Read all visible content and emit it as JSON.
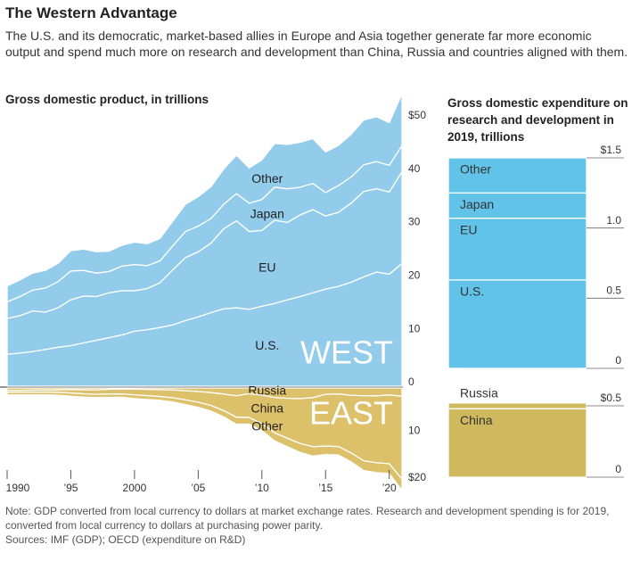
{
  "title": "The Western Advantage",
  "subtitle": "The U.S. and its democratic, market-based allies in Europe and Asia together generate far more economic output and spend much more on research and development than China, Russia and countries aligned with them.",
  "note": "Note: GDP converted from local currency to dollars at market exchange rates. Research and development spending is for 2019, converted from local currency to dollars at purchasing power parity.",
  "sources": "Sources: IMF (GDP); OECD (expenditure on R&D)",
  "chart_data": [
    {
      "type": "area",
      "stacked": true,
      "title": "Gross domestic product, in trillions",
      "annotation": "WEST",
      "x": [
        1990,
        1991,
        1992,
        1993,
        1994,
        1995,
        1996,
        1997,
        1998,
        1999,
        2000,
        2001,
        2002,
        2003,
        2004,
        2005,
        2006,
        2007,
        2008,
        2009,
        2010,
        2011,
        2012,
        2013,
        2014,
        2015,
        2016,
        2017,
        2018,
        2019,
        2020,
        2021
      ],
      "xlim": [
        1990,
        2021
      ],
      "ylim": [
        0,
        56
      ],
      "yticks": [
        0,
        10,
        20,
        30,
        40,
        {
          "value": 50,
          "label": "$50"
        }
      ],
      "series": [
        {
          "name": "U.S.",
          "color": "#93cbeb",
          "values": [
            6.0,
            6.2,
            6.5,
            6.9,
            7.3,
            7.6,
            8.1,
            8.6,
            9.1,
            9.6,
            10.3,
            10.6,
            11.0,
            11.5,
            12.3,
            13.0,
            13.8,
            14.5,
            14.7,
            14.4,
            15.0,
            15.5,
            16.2,
            16.8,
            17.5,
            18.2,
            18.7,
            19.5,
            20.5,
            21.4,
            21.0,
            23.0
          ]
        },
        {
          "name": "EU",
          "color": "#93cbeb",
          "values": [
            6.7,
            7.0,
            7.6,
            7.0,
            7.4,
            8.6,
            8.8,
            8.2,
            8.4,
            8.3,
            7.6,
            7.7,
            8.4,
            10.3,
            11.8,
            12.2,
            13.0,
            15.0,
            16.3,
            14.6,
            14.2,
            15.6,
            14.5,
            15.3,
            15.6,
            13.7,
            13.9,
            14.8,
            16.0,
            15.6,
            15.4,
            17.2
          ]
        },
        {
          "name": "Japan",
          "color": "#93cbeb",
          "values": [
            3.1,
            3.6,
            3.9,
            4.5,
            4.9,
            5.4,
            4.8,
            4.4,
            4.0,
            4.6,
            4.9,
            4.3,
            4.1,
            4.5,
            4.9,
            4.8,
            4.6,
            4.6,
            5.1,
            5.3,
            5.8,
            6.2,
            6.3,
            5.2,
            4.9,
            4.4,
            5.0,
            4.9,
            5.0,
            5.1,
            5.0,
            4.9
          ]
        },
        {
          "name": "Other",
          "color": "#93cbeb",
          "values": [
            3.0,
            3.1,
            3.2,
            3.3,
            3.4,
            3.8,
            4.0,
            4.0,
            3.8,
            3.9,
            4.2,
            4.1,
            4.2,
            4.6,
            5.1,
            5.5,
            6.0,
            6.6,
            7.2,
            6.6,
            7.4,
            8.2,
            8.3,
            8.4,
            8.4,
            7.6,
            7.5,
            8.0,
            8.4,
            8.4,
            8.0,
            9.7
          ]
        }
      ]
    },
    {
      "type": "area",
      "stacked": true,
      "inverted": true,
      "annotation": "EAST",
      "x": [
        1990,
        1991,
        1992,
        1993,
        1994,
        1995,
        1996,
        1997,
        1998,
        1999,
        2000,
        2001,
        2002,
        2003,
        2004,
        2005,
        2006,
        2007,
        2008,
        2009,
        2010,
        2011,
        2012,
        2013,
        2014,
        2015,
        2016,
        2017,
        2018,
        2019,
        2020,
        2021
      ],
      "xlim": [
        1990,
        2021
      ],
      "ylim": [
        0,
        22
      ],
      "yticks": [
        10,
        {
          "value": 20,
          "label": "$20"
        }
      ],
      "xticks": [
        1990,
        {
          "value": 1995,
          "label": "’95"
        },
        2000,
        {
          "value": 2005,
          "label": "’05"
        },
        {
          "value": 2010,
          "label": "’10"
        },
        {
          "value": 2015,
          "label": "’15"
        },
        {
          "value": 2020,
          "label": "’20"
        }
      ],
      "series": [
        {
          "name": "Russia",
          "color": "#dcc06a",
          "values": [
            0.52,
            0.51,
            0.46,
            0.44,
            0.39,
            0.34,
            0.39,
            0.4,
            0.27,
            0.2,
            0.26,
            0.31,
            0.35,
            0.43,
            0.59,
            0.76,
            0.99,
            1.3,
            1.66,
            1.22,
            1.52,
            2.05,
            2.21,
            2.29,
            2.06,
            1.36,
            1.28,
            1.57,
            1.66,
            1.69,
            1.49,
            1.78
          ]
        },
        {
          "name": "China",
          "color": "#dcc06a",
          "values": [
            0.36,
            0.38,
            0.43,
            0.44,
            0.56,
            0.73,
            0.86,
            0.96,
            1.03,
            1.09,
            1.21,
            1.34,
            1.47,
            1.66,
            1.96,
            2.29,
            2.75,
            3.55,
            4.59,
            5.1,
            6.09,
            7.55,
            8.53,
            9.57,
            10.48,
            11.06,
            11.23,
            12.31,
            13.89,
            14.28,
            14.69,
            17.7
          ]
        },
        {
          "name": "Other",
          "color": "#dcc06a",
          "values": [
            0.6,
            0.6,
            0.6,
            0.6,
            0.6,
            0.7,
            0.7,
            0.7,
            0.7,
            0.7,
            0.8,
            0.8,
            0.8,
            0.9,
            1.0,
            1.1,
            1.2,
            1.3,
            1.5,
            1.4,
            1.5,
            1.7,
            1.8,
            1.9,
            2.0,
            1.8,
            1.8,
            1.9,
            2.1,
            2.1,
            2.1,
            2.4
          ]
        }
      ]
    },
    {
      "type": "bar",
      "stacked": true,
      "title": "Gross domestic expenditure on research and development in 2019, trillions",
      "categories": [
        null
      ],
      "ylim": [
        0,
        1.5
      ],
      "yticks": [
        0,
        0.5,
        {
          "value": 1,
          "label": "1.0"
        },
        {
          "value": 1.5,
          "label": "$1.5"
        }
      ],
      "series": [
        {
          "name": "U.S.",
          "color": "#62c3e9",
          "values": [
            0.63
          ]
        },
        {
          "name": "EU",
          "color": "#62c3e9",
          "values": [
            0.44
          ]
        },
        {
          "name": "Japan",
          "color": "#62c3e9",
          "values": [
            0.18
          ]
        },
        {
          "name": "Other",
          "color": "#62c3e9",
          "values": [
            0.25
          ]
        }
      ]
    },
    {
      "type": "bar",
      "stacked": true,
      "categories": [
        null
      ],
      "ylim": [
        0,
        0.55
      ],
      "yticks": [
        0,
        {
          "value": 0.5,
          "label": "$0.5"
        }
      ],
      "series": [
        {
          "name": "China",
          "color": "#cfb85e",
          "values": [
            0.48
          ]
        },
        {
          "name": "Russia",
          "color": "#cfb85e",
          "values": [
            0.04
          ]
        }
      ]
    }
  ]
}
